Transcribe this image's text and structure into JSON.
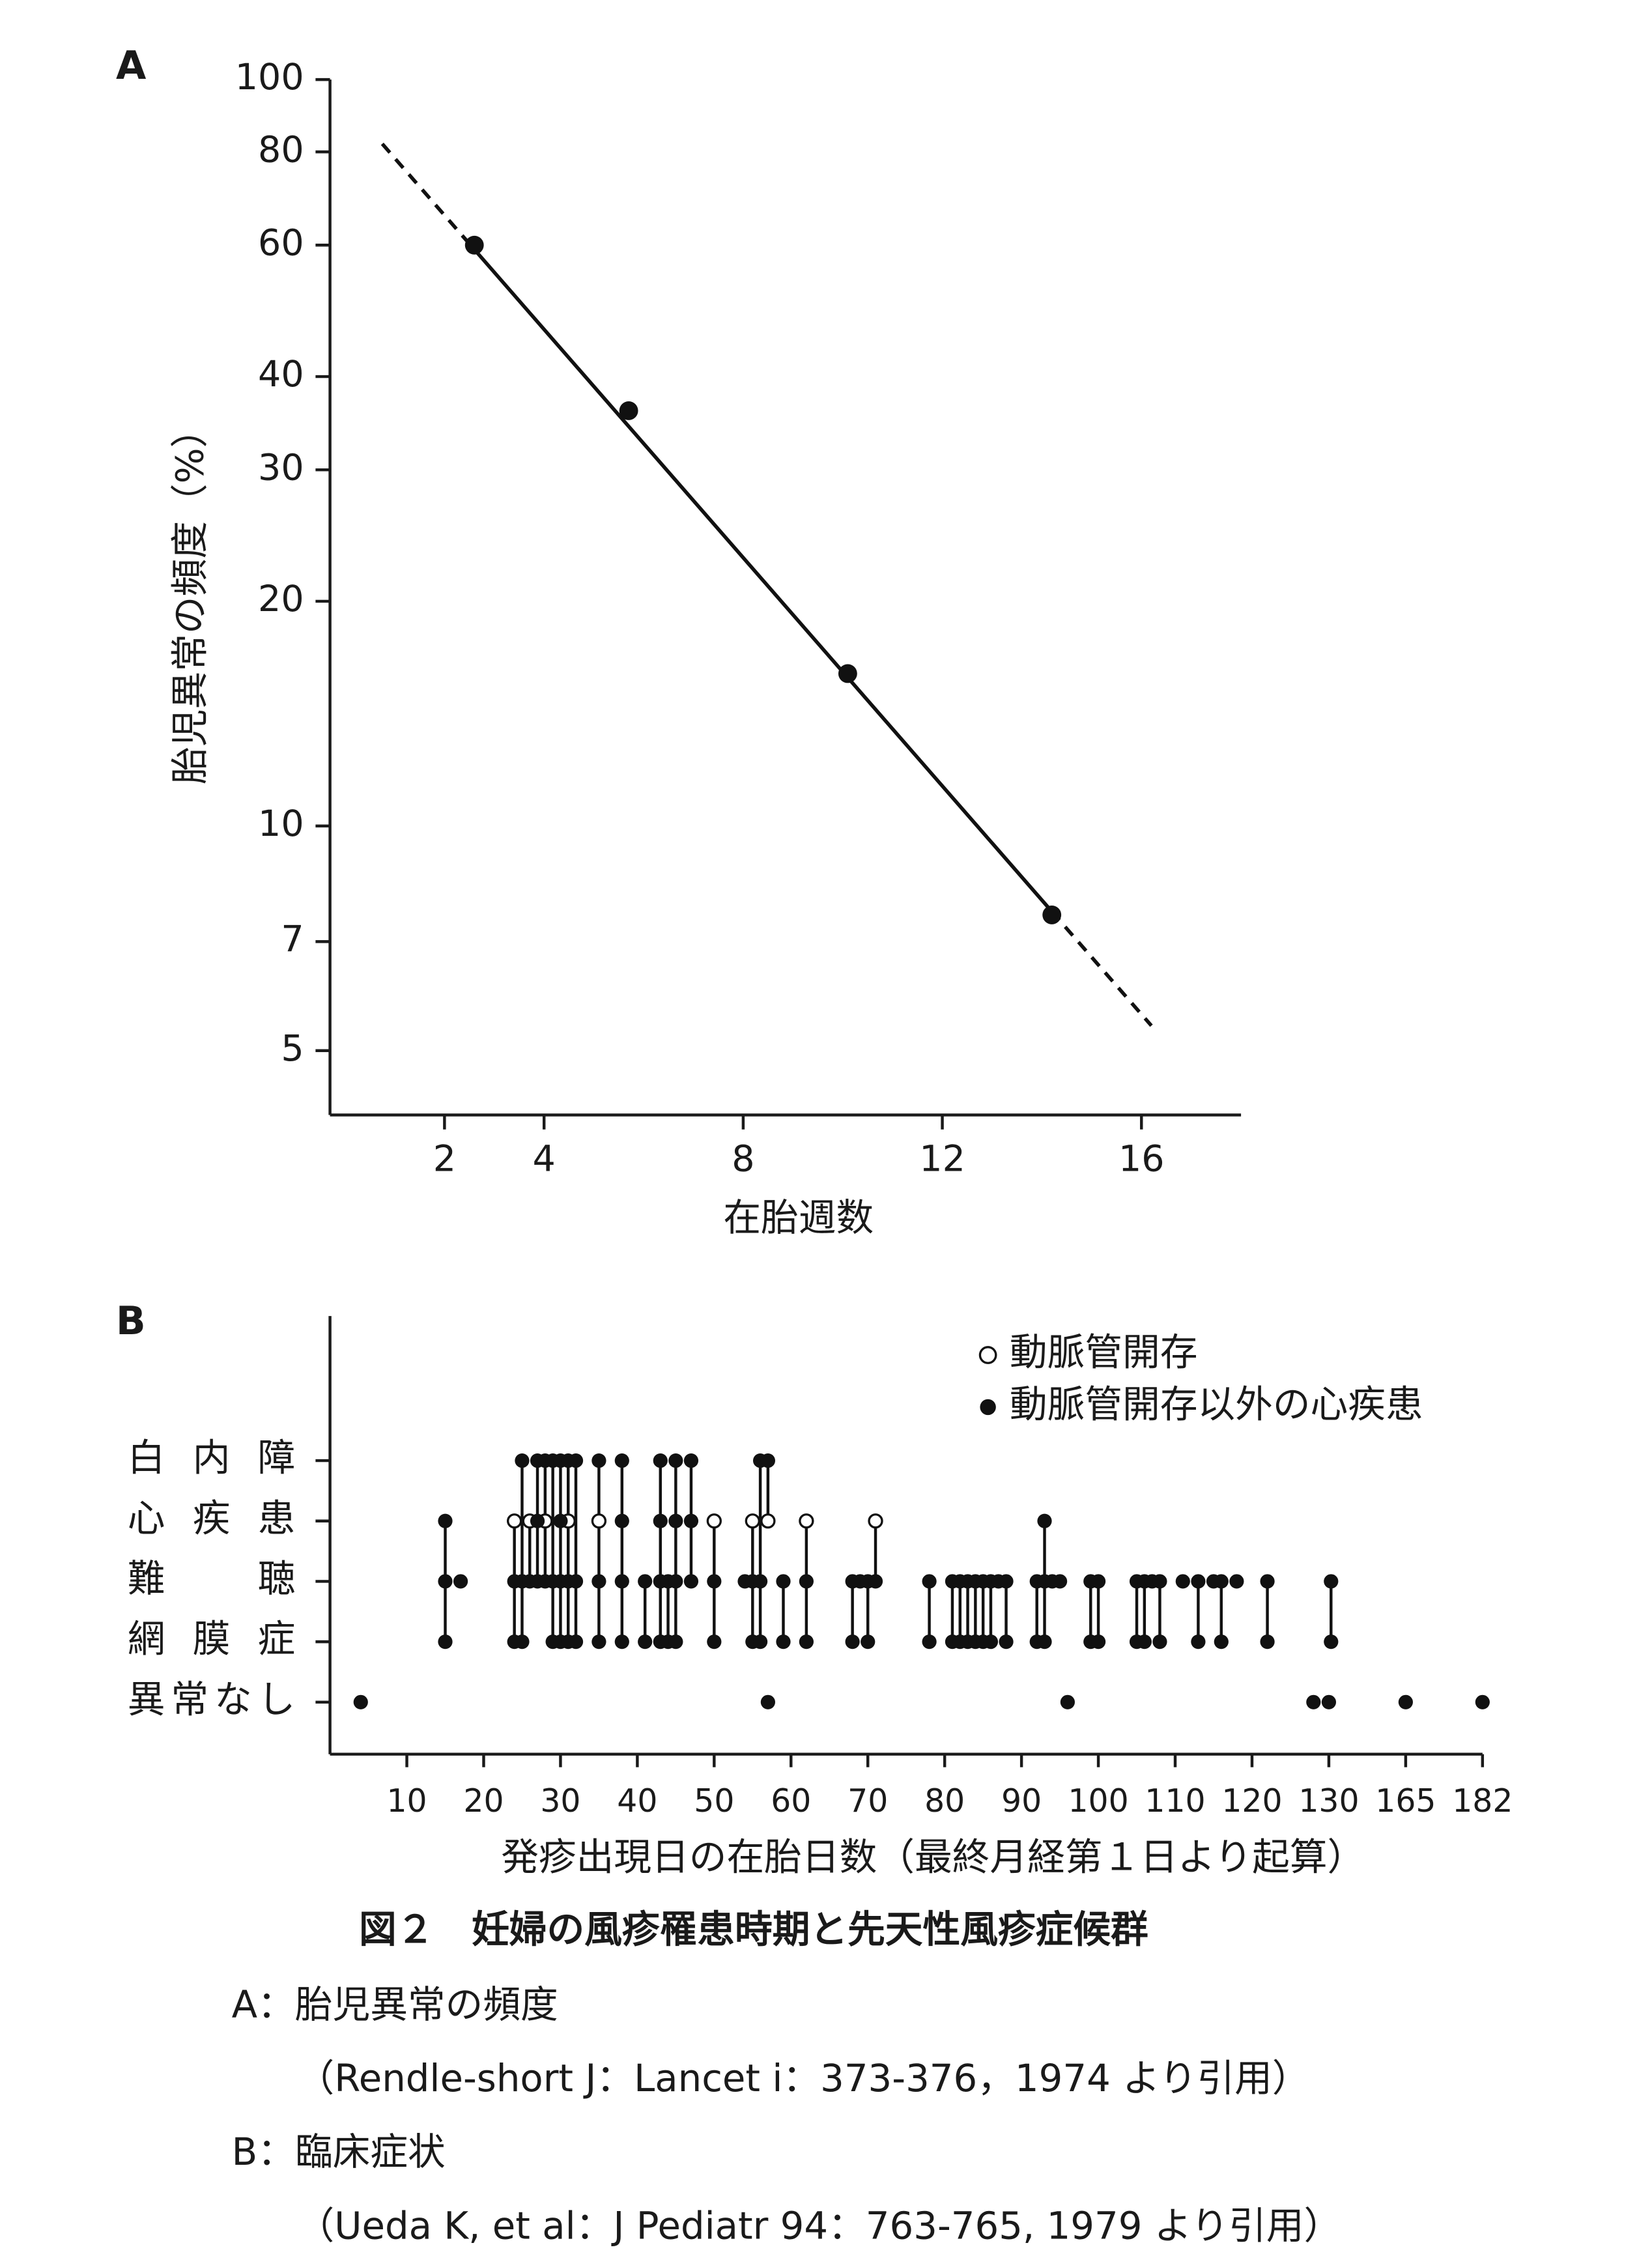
{
  "chart_data": [
    {
      "type": "line",
      "label": "A",
      "y_label": "胎児異常の頻度（%）",
      "x_label": "在胎週数",
      "x": [
        2.6,
        5.7,
        10.1,
        14.2
      ],
      "values": [
        60,
        36,
        16,
        7.6
      ],
      "fit": {
        "x": [
          0.75,
          16.2
        ],
        "values": [
          82,
          5.4
        ]
      },
      "xlim": [
        -0.3,
        18
      ],
      "ylim": [
        4.1,
        100
      ],
      "log_y": true,
      "xticks": [
        2,
        4,
        8,
        12,
        16
      ],
      "yticks": [
        100,
        80,
        60,
        40,
        30,
        20,
        10,
        7,
        5
      ],
      "color": "#111111"
    },
    {
      "type": "dot-strip",
      "label": "B",
      "x_label": "発疹出現日の在胎日数（最終月経第１日より起算）",
      "xlim": [
        0,
        182
      ],
      "xticks": [
        10,
        20,
        30,
        40,
        50,
        60,
        70,
        80,
        90,
        100,
        110,
        120,
        130,
        165,
        182
      ],
      "color": "#111111",
      "rows": [
        {
          "label": "白 内 障",
          "x": [
            25,
            27,
            28,
            29,
            30,
            31,
            32,
            35,
            38,
            43,
            45,
            47,
            56,
            57
          ]
        },
        {
          "label": "心 疾 患",
          "series": [
            {
              "name": "動脈管開存",
              "marker": "open",
              "x": [
                24,
                26,
                28,
                31,
                35,
                50,
                55,
                57,
                62,
                71
              ]
            },
            {
              "name": "動脈管開存以外の心疾患",
              "marker": "filled",
              "x": [
                15,
                27,
                30,
                38,
                43,
                45,
                47,
                93
              ]
            }
          ]
        },
        {
          "label": "難　　聴",
          "x": [
            15,
            17,
            24,
            25,
            26,
            27,
            28,
            29,
            30,
            31,
            32,
            35,
            38,
            41,
            43,
            44,
            45,
            47,
            50,
            54,
            55,
            56,
            59,
            62,
            68,
            69,
            70,
            71,
            78,
            81,
            82,
            83,
            84,
            85,
            86,
            87,
            88,
            92,
            93,
            94,
            95,
            99,
            100,
            105,
            106,
            107,
            108,
            111,
            113,
            115,
            116,
            118,
            122,
            131
          ]
        },
        {
          "label": "網 膜 症",
          "x": [
            15,
            24,
            25,
            29,
            30,
            31,
            32,
            35,
            38,
            41,
            43,
            44,
            45,
            50,
            55,
            56,
            59,
            62,
            68,
            70,
            78,
            81,
            82,
            83,
            84,
            85,
            86,
            88,
            92,
            93,
            99,
            100,
            105,
            106,
            108,
            113,
            116,
            122,
            131
          ]
        },
        {
          "label": "異常なし",
          "x": [
            4,
            57,
            96,
            128,
            130,
            165,
            182
          ]
        }
      ]
    }
  ],
  "caption": {
    "title": "図２　妊婦の風疹罹患時期と先天性風疹症候群",
    "lines": [
      "A：胎児異常の頻度",
      "（Rendle-short J：Lancet i：373-376，1974 より引用）",
      "B：臨床症状",
      "（Ueda K, et al：J Pediatr 94：763-765, 1979 より引用）"
    ]
  }
}
